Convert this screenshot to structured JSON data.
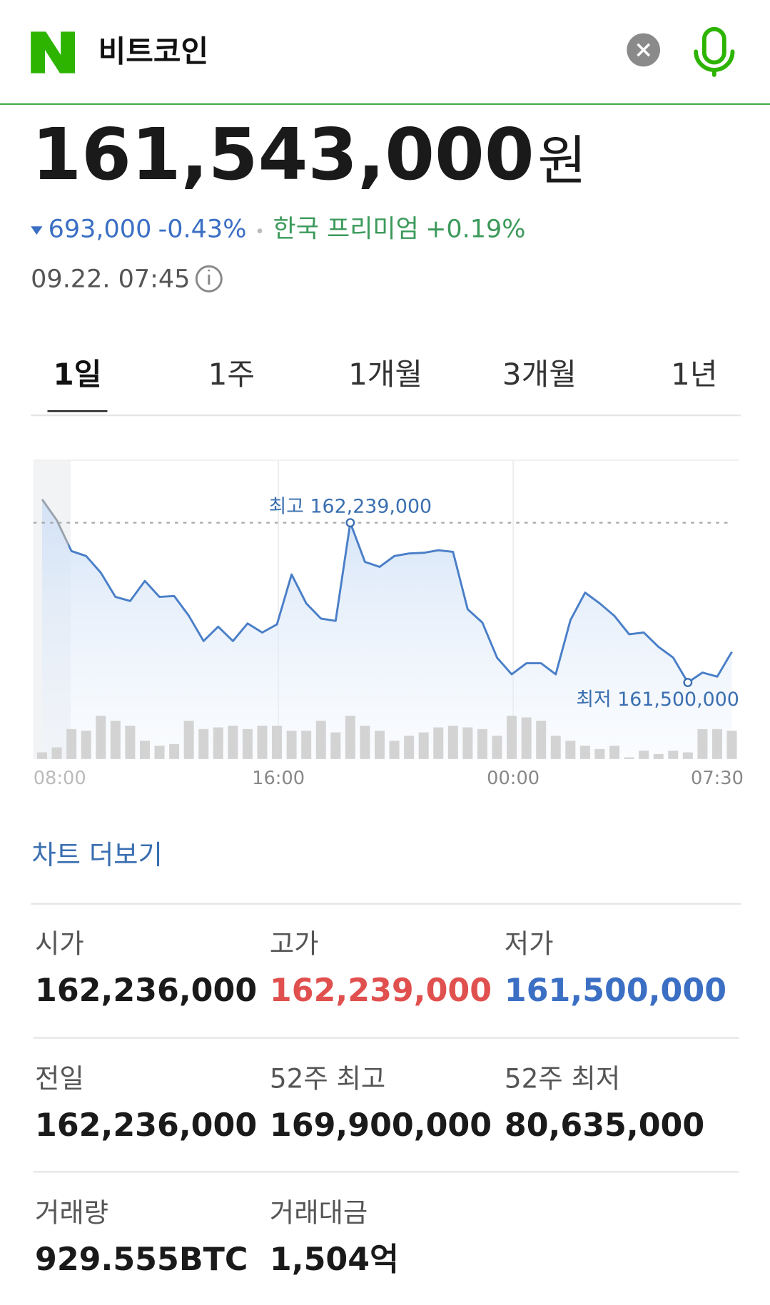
{
  "header": {
    "query": "비트코인"
  },
  "price": {
    "value": "161,543,000",
    "unit": "원",
    "change": "693,000",
    "change_pct": "-0.43%",
    "premium_label": "한국 프리미엄",
    "premium": "+0.19%",
    "timestamp": "09.22. 07:45"
  },
  "tabs": [
    "1일",
    "1주",
    "1개월",
    "3개월",
    "1년"
  ],
  "active_tab": 0,
  "chart_data": {
    "type": "line",
    "x": [
      0,
      1,
      2,
      3,
      4,
      5,
      6,
      7,
      8,
      9,
      10,
      11,
      12,
      13,
      14,
      15,
      16,
      17,
      18,
      19,
      20,
      21,
      22,
      23,
      24,
      25,
      26,
      27,
      28,
      29,
      30,
      31,
      32,
      33,
      34,
      35,
      36,
      37,
      38,
      39,
      40,
      41,
      42,
      43,
      44,
      45,
      46,
      47
    ],
    "series": [
      {
        "color": "#4a7fc8",
        "values": [
          162347000,
          162251000,
          162108000,
          162085000,
          162008000,
          161896000,
          161877000,
          161970000,
          161896000,
          161900000,
          161808000,
          161692000,
          161758000,
          161692000,
          161773000,
          161731000,
          161769000,
          162000000,
          161866000,
          161796000,
          161785000,
          162239000,
          162058000,
          162035000,
          162085000,
          162097000,
          162100000,
          162112000,
          162104000,
          161839000,
          161777000,
          161615000,
          161538000,
          161589000,
          161589000,
          161538000,
          161789000,
          161916000,
          161866000,
          161808000,
          161723000,
          161731000,
          161665000,
          161615000,
          161500000,
          161546000,
          161527000,
          161642000
        ]
      }
    ],
    "xlim": [
      -0.6,
      47.5
    ],
    "ylim": [
      161146000,
      162528000
    ],
    "xticks": [
      {
        "value": 1.2,
        "label": "08:00"
      },
      {
        "value": 16.1,
        "label": "16:00"
      },
      {
        "value": 32.1,
        "label": "00:00"
      },
      {
        "value": 46.0,
        "label": "07:30"
      }
    ],
    "annotations": [
      {
        "text": "최고 162,239,000",
        "value": 162239000,
        "x": 21
      },
      {
        "text": "최저 161,500,000",
        "value": 161500000,
        "x": 44
      }
    ],
    "volume": {
      "color": "#d3d3d3",
      "ylim": [
        0,
        60
      ],
      "values": [
        8,
        14,
        36,
        34,
        52,
        46,
        40,
        22,
        16,
        18,
        46,
        36,
        38,
        40,
        36,
        40,
        40,
        34,
        34,
        46,
        32,
        52,
        40,
        34,
        22,
        28,
        32,
        38,
        40,
        38,
        36,
        28,
        52,
        50,
        46,
        28,
        22,
        16,
        12,
        16,
        2,
        10,
        6,
        10,
        8,
        36,
        36,
        34
      ]
    },
    "grid": true
  },
  "more_link": "차트 더보기",
  "stats": [
    {
      "label": "시가",
      "value": "162,236,000"
    },
    {
      "label": "고가",
      "value": "162,239,000",
      "color": "#e0504e"
    },
    {
      "label": "저가",
      "value": "161,500,000",
      "color": "#3b6fc4"
    },
    {
      "label": "전일",
      "value": "162,236,000"
    },
    {
      "label": "52주 최고",
      "value": "169,900,000"
    },
    {
      "label": "52주 최저",
      "value": "80,635,000"
    },
    {
      "label": "거래량",
      "value": "929.555BTC"
    },
    {
      "label": "거래대금",
      "value": "1,504억"
    }
  ]
}
